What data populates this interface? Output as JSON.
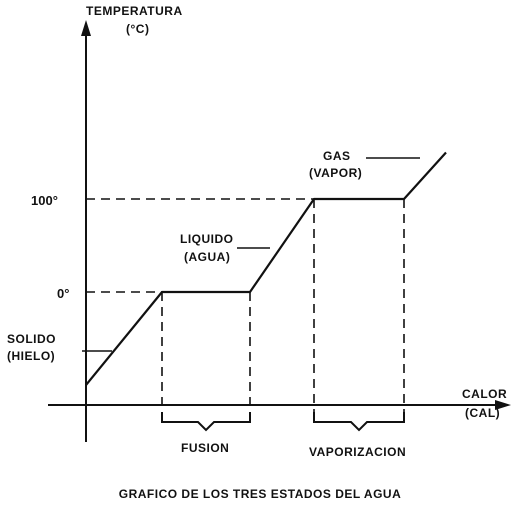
{
  "chart_data": {
    "type": "line",
    "title": "GRAFICO DE LOS TRES ESTADOS DEL AGUA",
    "ylabel": [
      "TEMPERATURA",
      "(°C)"
    ],
    "xlabel": [
      "CALOR",
      "(CAL)"
    ],
    "yticks": [
      {
        "value": 0,
        "label": "0°"
      },
      {
        "value": 100,
        "label": "100°"
      }
    ],
    "series": [
      {
        "x": [
          0,
          1,
          2,
          3,
          4,
          5
        ],
        "y": [
          -100,
          0,
          0,
          100,
          100,
          150
        ]
      }
    ],
    "ylim": [
      -100,
      230
    ],
    "xlim": [
      0,
      6
    ],
    "state_labels": [
      {
        "id": "solido",
        "lines": [
          "SOLIDO",
          "(HIELO)"
        ]
      },
      {
        "id": "liquido",
        "lines": [
          "LIQUIDO",
          "(AGUA)"
        ]
      },
      {
        "id": "gas",
        "lines": [
          "GAS",
          "(VAPOR)"
        ]
      }
    ],
    "phase_brackets": [
      {
        "id": "fusion",
        "label": "FUSION",
        "x_start": 1,
        "x_end": 2
      },
      {
        "id": "vaporizacion",
        "label": "VAPORIZACION",
        "x_start": 3,
        "x_end": 4
      }
    ],
    "grid": false
  }
}
